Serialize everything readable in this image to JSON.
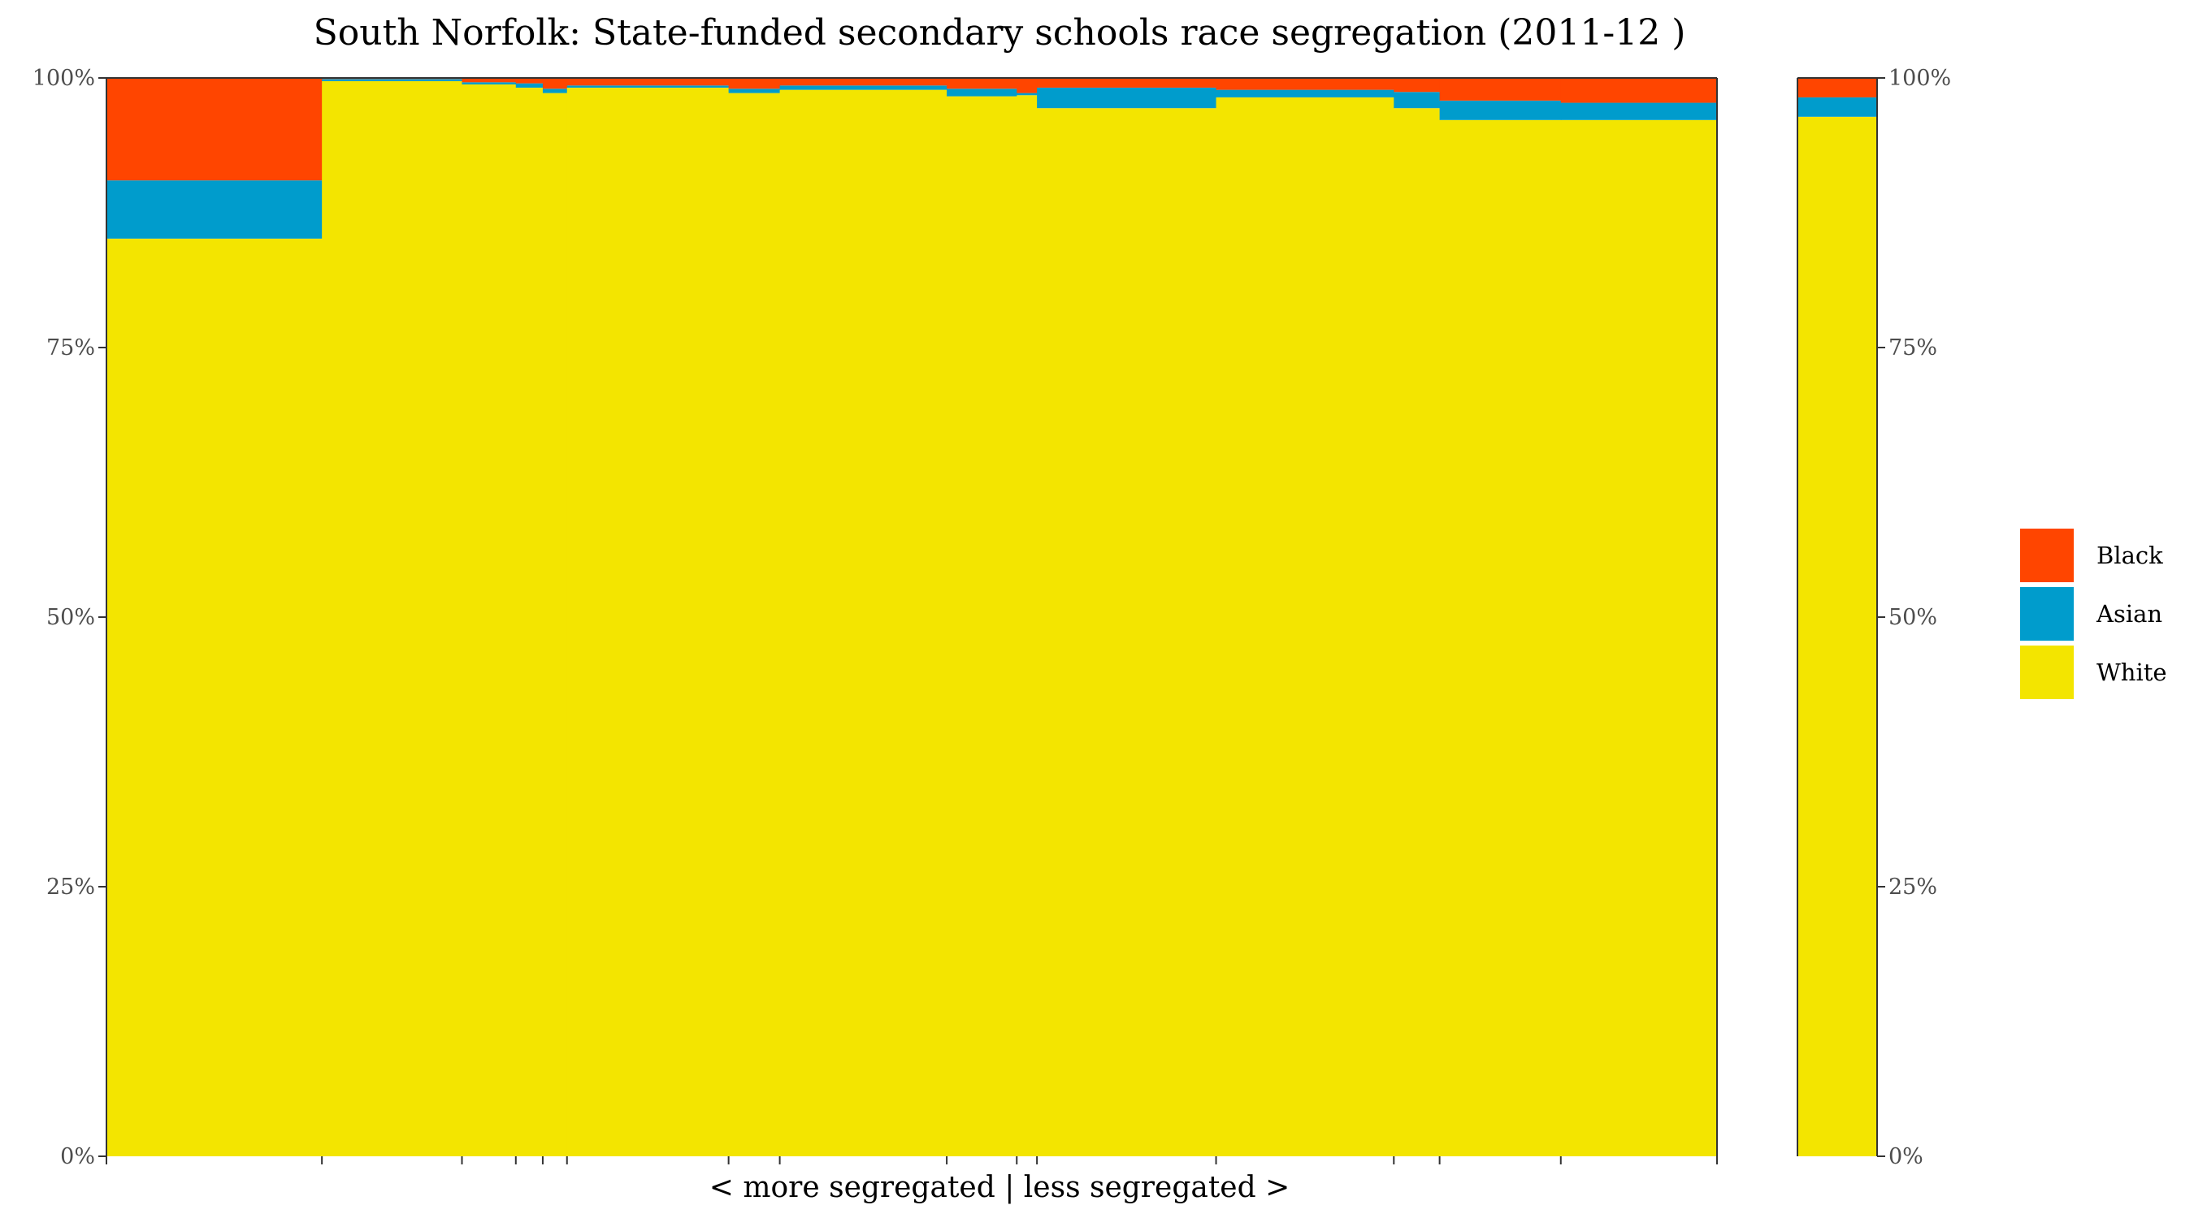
{
  "chart_data": {
    "type": "bar",
    "title": "South Norfolk: State-funded secondary schools race segregation (2011-12 )",
    "xlabel": "< more segregated | less segregated >",
    "ylabel": "",
    "ylim": [
      0,
      1
    ],
    "y_ticks": [
      "0%",
      "25%",
      "50%",
      "75%",
      "100%"
    ],
    "stacking": "stacked to 100%, bottom-to-top order: White, Asian, Black",
    "legend_position": "right",
    "colors": {
      "Black": "#FF4500",
      "Asian": "#009CCC",
      "White": "#F3E500"
    },
    "legend": [
      "Black",
      "Asian",
      "White"
    ],
    "schools_relative_width": [
      160,
      104,
      40,
      20,
      18,
      120,
      38,
      124,
      52,
      15,
      133,
      132,
      34,
      90,
      116
    ],
    "series": [
      {
        "name": "White",
        "values": [
          0.851,
          0.997,
          0.994,
          0.991,
          0.986,
          0.991,
          0.986,
          0.989,
          0.983,
          0.984,
          0.972,
          0.982,
          0.972,
          0.961,
          0.961
        ]
      },
      {
        "name": "Asian",
        "values": [
          0.054,
          0.002,
          0.002,
          0.004,
          0.004,
          0.002,
          0.004,
          0.004,
          0.007,
          0.002,
          0.019,
          0.007,
          0.015,
          0.018,
          0.016
        ]
      },
      {
        "name": "Black",
        "values": [
          0.095,
          0.001,
          0.004,
          0.005,
          0.01,
          0.007,
          0.01,
          0.007,
          0.01,
          0.014,
          0.009,
          0.011,
          0.013,
          0.021,
          0.023
        ]
      }
    ],
    "overall": {
      "White": 0.964,
      "Asian": 0.018,
      "Black": 0.018
    }
  }
}
